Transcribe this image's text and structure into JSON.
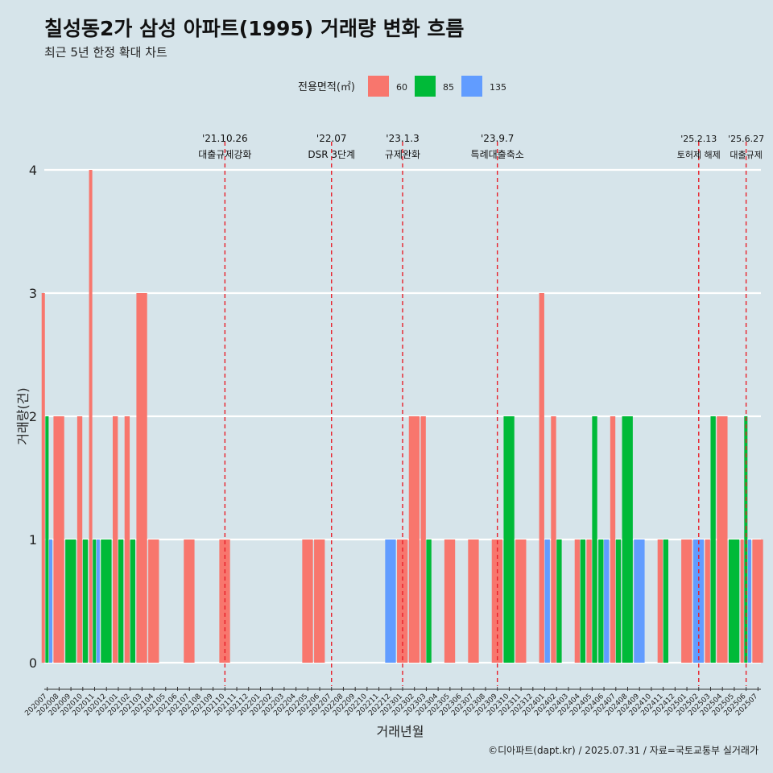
{
  "title": "칠성동2가 삼성 아파트(1995) 거래량 변화 흐름",
  "subtitle": "최근 5년 한정 확대 차트",
  "caption": "©디아파트(dapt.kr) / 2025.07.31 / 자료=국토교통부 실거래가",
  "chart_data": {
    "type": "bar",
    "xlabel": "거래년월",
    "ylabel": "거래량(건)",
    "ylim": [
      0,
      4
    ],
    "yticks": [
      0,
      1,
      2,
      3,
      4
    ],
    "grid": true,
    "legend": {
      "title": "전용면적(㎡)",
      "position": "top",
      "items": [
        {
          "label": "60",
          "color": "#f8766d"
        },
        {
          "label": "85",
          "color": "#00ba38"
        },
        {
          "label": "135",
          "color": "#619cff"
        }
      ]
    },
    "categories": [
      "202007",
      "202008",
      "202009",
      "202010",
      "202011",
      "202012",
      "202101",
      "202102",
      "202103",
      "202104",
      "202105",
      "202106",
      "202107",
      "202108",
      "202109",
      "202110",
      "202111",
      "202112",
      "202201",
      "202202",
      "202203",
      "202204",
      "202205",
      "202206",
      "202207",
      "202208",
      "202209",
      "202210",
      "202211",
      "202212",
      "202301",
      "202302",
      "202303",
      "202304",
      "202305",
      "202306",
      "202307",
      "202308",
      "202309",
      "202310",
      "202311",
      "202312",
      "202401",
      "202402",
      "202403",
      "202404",
      "202405",
      "202406",
      "202407",
      "202408",
      "202409",
      "202410",
      "202411",
      "202412",
      "202501",
      "202502",
      "202503",
      "202504",
      "202505",
      "202506",
      "202507"
    ],
    "series": [
      {
        "name": "60",
        "color": "#f8766d",
        "values": [
          3,
          2,
          0,
          2,
          4,
          0,
          2,
          2,
          3,
          1,
          0,
          0,
          1,
          0,
          0,
          1,
          0,
          0,
          0,
          0,
          0,
          0,
          1,
          1,
          0,
          0,
          0,
          0,
          0,
          0,
          1,
          2,
          2,
          0,
          1,
          0,
          1,
          0,
          1,
          0,
          1,
          0,
          3,
          2,
          0,
          1,
          1,
          0,
          2,
          0,
          0,
          0,
          1,
          0,
          1,
          0,
          1,
          2,
          0,
          1,
          1
        ]
      },
      {
        "name": "85",
        "color": "#00ba38",
        "values": [
          2,
          0,
          1,
          1,
          1,
          1,
          1,
          1,
          0,
          0,
          0,
          0,
          0,
          0,
          0,
          0,
          0,
          0,
          0,
          0,
          0,
          0,
          0,
          0,
          0,
          0,
          0,
          0,
          0,
          0,
          0,
          0,
          1,
          0,
          0,
          0,
          0,
          0,
          0,
          2,
          0,
          0,
          0,
          1,
          0,
          1,
          2,
          1,
          1,
          2,
          0,
          0,
          1,
          0,
          0,
          0,
          2,
          0,
          1,
          2,
          0
        ]
      },
      {
        "name": "135",
        "color": "#619cff",
        "values": [
          1,
          0,
          0,
          0,
          1,
          0,
          0,
          0,
          0,
          0,
          0,
          0,
          0,
          0,
          0,
          0,
          0,
          0,
          0,
          0,
          0,
          0,
          0,
          0,
          0,
          0,
          0,
          0,
          0,
          1,
          0,
          0,
          0,
          0,
          0,
          0,
          0,
          0,
          0,
          0,
          0,
          0,
          1,
          0,
          0,
          0,
          0,
          1,
          0,
          0,
          1,
          0,
          0,
          0,
          0,
          1,
          0,
          0,
          0,
          1,
          0
        ]
      }
    ],
    "annotations": [
      {
        "category": "202110",
        "date": "'21.10.26",
        "text": "대출규제강화"
      },
      {
        "category": "202207",
        "date": "'22.07",
        "text": "DSR 3단계"
      },
      {
        "category": "202301",
        "date": "'23.1.3",
        "text": "규제완화"
      },
      {
        "category": "202309",
        "date": "'23.9.7",
        "text": "특례대출축소"
      },
      {
        "category": "202502",
        "date": "'25.2.13",
        "text": "토허제 해제"
      },
      {
        "category": "202506",
        "date": "'25.6.27",
        "text": "대출규제"
      }
    ]
  }
}
